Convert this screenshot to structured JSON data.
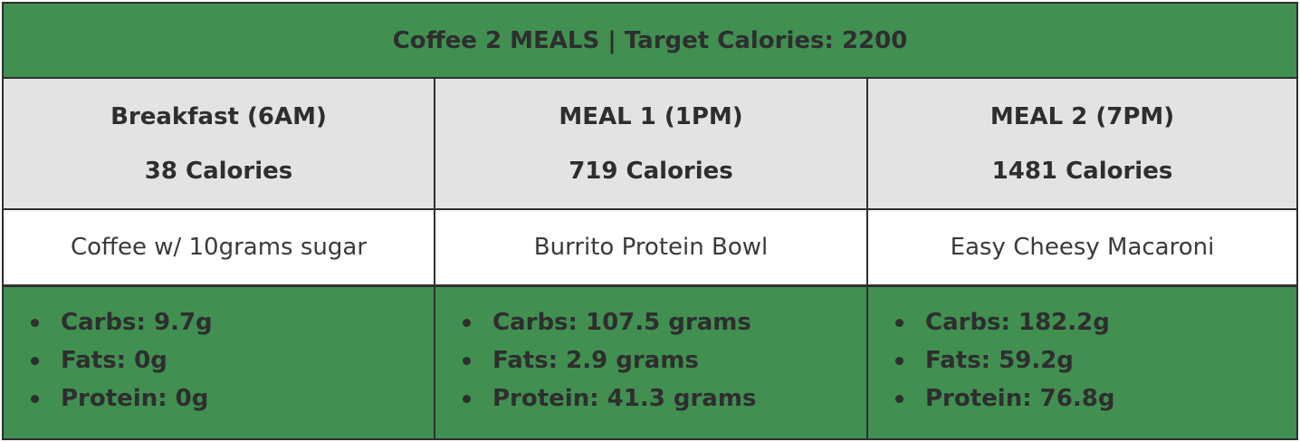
{
  "title": "Coffee 2 MEALS | Target Calories: 2200",
  "meals": [
    {
      "header": "Breakfast (6AM)",
      "calories": "38 Calories",
      "food": "Coffee w/ 10grams sugar",
      "macros": [
        "Carbs: 9.7g",
        "Fats: 0g",
        "Protein: 0g"
      ]
    },
    {
      "header": "MEAL 1 (1PM)",
      "calories": "719 Calories",
      "food": "Burrito Protein Bowl",
      "macros": [
        "Carbs: 107.5 grams",
        "Fats: 2.9 grams",
        "Protein: 41.3 grams"
      ]
    },
    {
      "header": "MEAL 2 (7PM)",
      "calories": "1481 Calories",
      "food": "Easy Cheesy Macaroni",
      "macros": [
        "Carbs: 182.2g",
        "Fats: 59.2g",
        "Protein: 76.8g"
      ]
    }
  ],
  "colors": {
    "accent_green": "#418f51",
    "header_gray": "#e3e3e3",
    "text_dark": "#2e2e2e"
  }
}
